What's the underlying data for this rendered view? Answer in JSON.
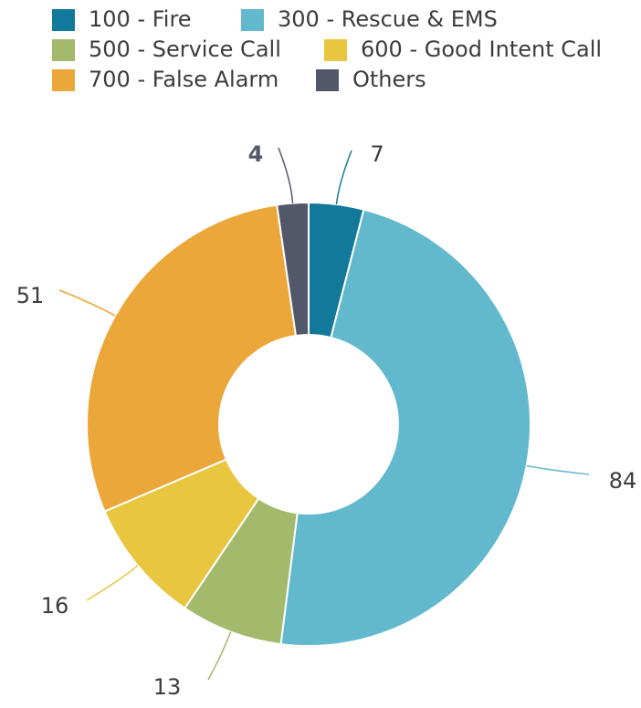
{
  "chart_data": {
    "type": "donut",
    "categories": [
      "100 - Fire",
      "300 - Rescue & EMS",
      "500 - Service Call",
      "600 - Good Intent Call",
      "700 - False Alarm",
      "Others"
    ],
    "values": [
      7,
      84,
      13,
      16,
      51,
      4
    ],
    "colors": [
      "#13799a",
      "#62b8cc",
      "#a3b96b",
      "#e8c640",
      "#eba73a",
      "#525869"
    ],
    "legend": "top"
  }
}
